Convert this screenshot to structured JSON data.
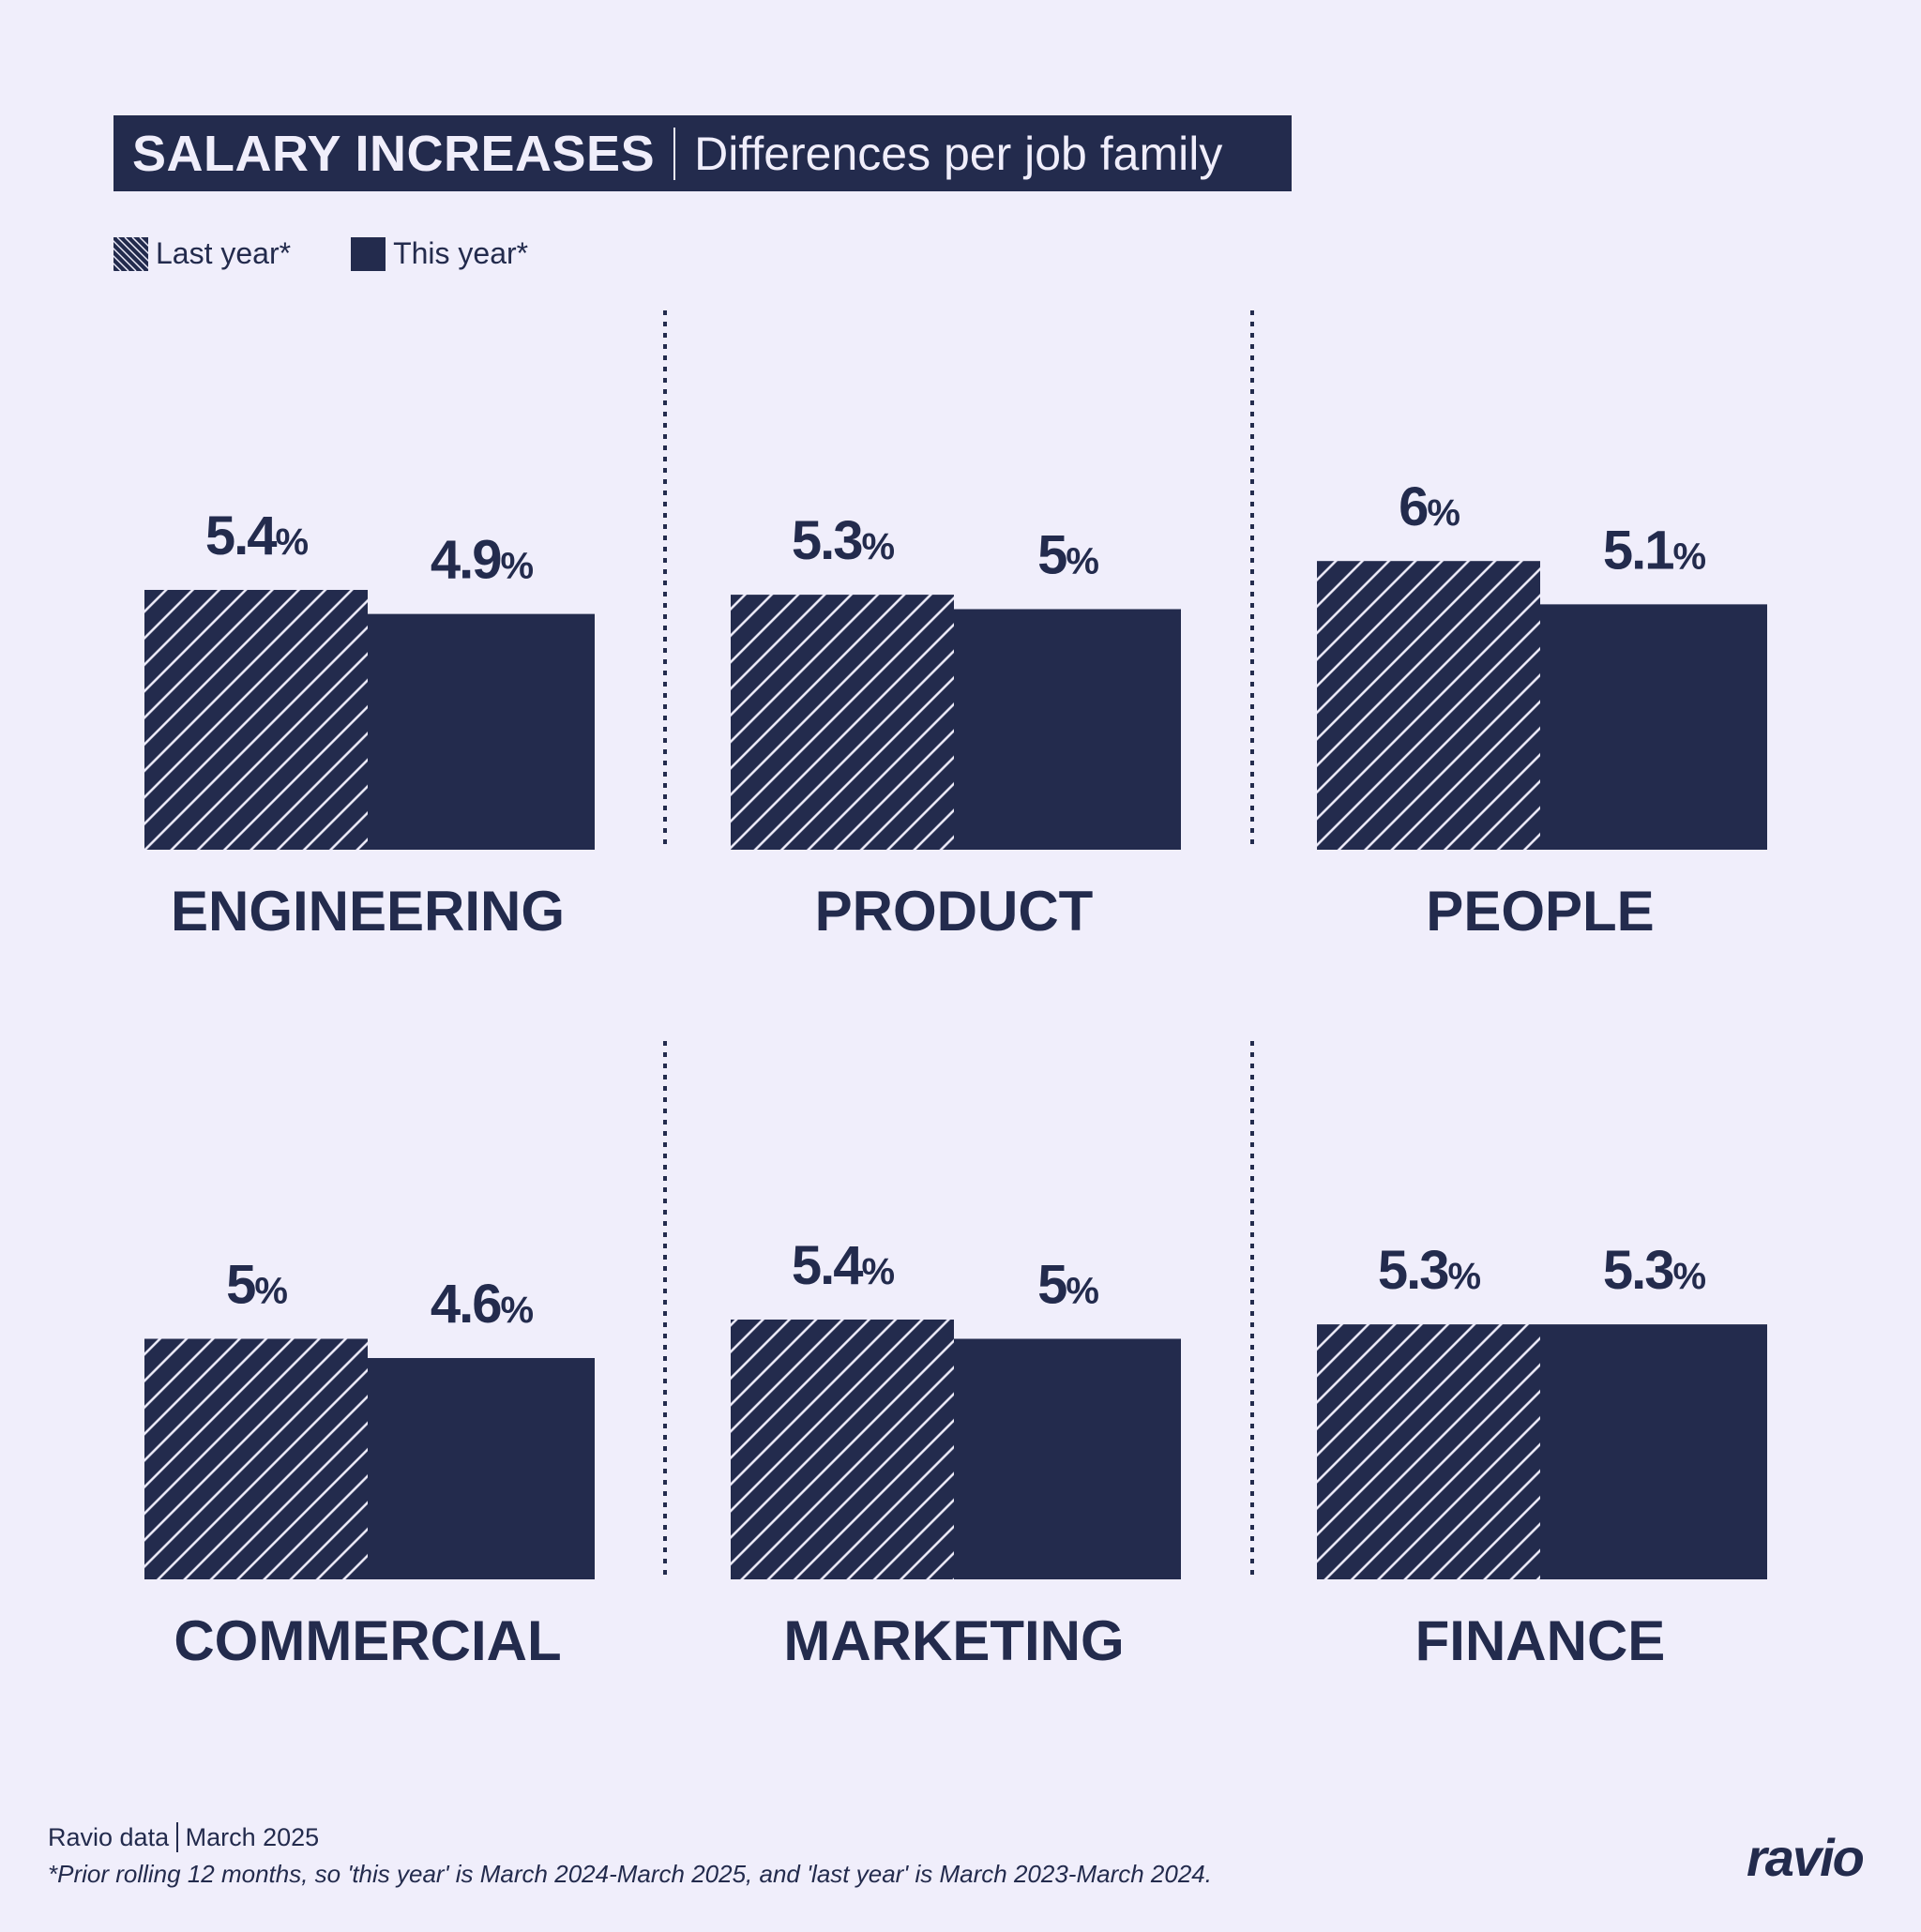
{
  "header": {
    "title": "SALARY INCREASES",
    "subtitle": "Differences per job family"
  },
  "legend": {
    "last_year": "Last year*",
    "this_year": "This year*"
  },
  "colors": {
    "background": "#f0eefb",
    "navy": "#232b4d"
  },
  "chart_data": {
    "type": "bar",
    "title": "SALARY INCREASES | Differences per job family",
    "categories": [
      "ENGINEERING",
      "PRODUCT",
      "PEOPLE",
      "COMMERCIAL",
      "MARKETING",
      "FINANCE"
    ],
    "series": [
      {
        "name": "Last year*",
        "style": "hatched",
        "values": [
          5.4,
          5.3,
          6,
          5,
          5.4,
          5.3
        ],
        "labels": [
          "5.4",
          "5.3",
          "6",
          "5",
          "5.4",
          "5.3"
        ]
      },
      {
        "name": "This year*",
        "style": "solid",
        "values": [
          4.9,
          5,
          5.1,
          4.6,
          5,
          5.3
        ],
        "labels": [
          "4.9",
          "5",
          "5.1",
          "4.6",
          "5",
          "5.3"
        ]
      }
    ],
    "unit": "%",
    "layout": "small multiples, 2 rows x 3 columns",
    "grid": false
  },
  "footer": {
    "source": "Ravio data",
    "date": "March 2025",
    "footnote": "*Prior rolling 12 months, so 'this year' is March 2024-March 2025, and 'last year' is March 2023-March 2024.",
    "logo": "ravio"
  }
}
